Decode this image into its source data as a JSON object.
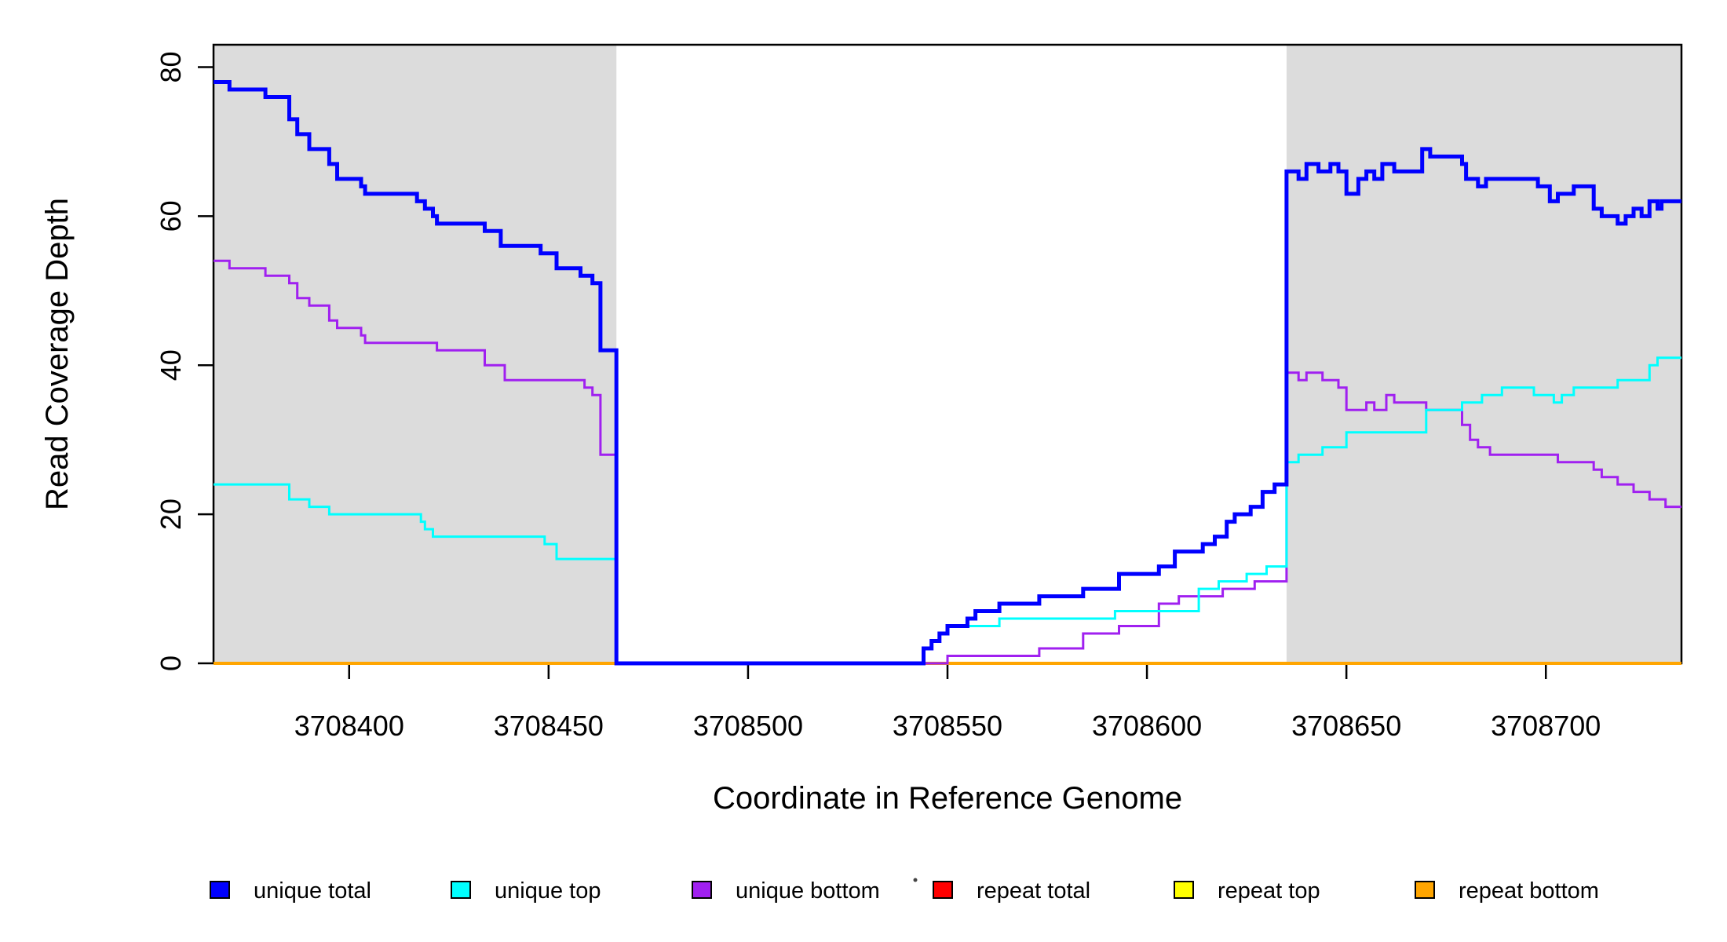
{
  "figure": {
    "background": "#FFFFFF",
    "plot_border_color": "#000000",
    "shade_color": "#DCDCDC"
  },
  "chart_data": {
    "type": "line",
    "subtype": "step-after",
    "title": "",
    "xlabel": "Coordinate in Reference Genome",
    "ylabel": "Read Coverage Depth",
    "xlim": [
      3708366,
      3708734
    ],
    "ylim": [
      0,
      83
    ],
    "x_ticks": [
      3708400,
      3708450,
      3708500,
      3708550,
      3708600,
      3708650,
      3708700
    ],
    "y_ticks": [
      0,
      20,
      40,
      60,
      80
    ],
    "grid": false,
    "legend_position": "bottom",
    "shaded_regions": [
      {
        "name": "left-gray-region",
        "x0": 3708366,
        "x1": 3708467
      },
      {
        "name": "right-gray-region",
        "x0": 3708635,
        "x1": 3708734
      }
    ],
    "series": [
      {
        "name": "repeat total",
        "color": "#FF0000",
        "line_width": 3,
        "points": [
          [
            3708366,
            0
          ],
          [
            3708734,
            0
          ]
        ]
      },
      {
        "name": "repeat top",
        "color": "#FFFF00",
        "line_width": 3,
        "points": [
          [
            3708366,
            0
          ],
          [
            3708734,
            0
          ]
        ]
      },
      {
        "name": "repeat bottom",
        "color": "#FFA500",
        "line_width": 4,
        "points": [
          [
            3708366,
            0
          ],
          [
            3708734,
            0
          ]
        ]
      },
      {
        "name": "unique bottom",
        "color": "#A020F0",
        "line_width": 3,
        "points": [
          [
            3708366,
            54
          ],
          [
            3708370,
            53
          ],
          [
            3708379,
            52
          ],
          [
            3708385,
            51
          ],
          [
            3708387,
            49
          ],
          [
            3708390,
            48
          ],
          [
            3708395,
            46
          ],
          [
            3708397,
            45
          ],
          [
            3708403,
            44
          ],
          [
            3708404,
            43
          ],
          [
            3708422,
            42
          ],
          [
            3708434,
            40
          ],
          [
            3708439,
            38
          ],
          [
            3708459,
            37
          ],
          [
            3708461,
            36
          ],
          [
            3708463,
            28
          ],
          [
            3708467,
            0
          ],
          [
            3708550,
            1
          ],
          [
            3708573,
            2
          ],
          [
            3708584,
            4
          ],
          [
            3708593,
            5
          ],
          [
            3708603,
            8
          ],
          [
            3708608,
            9
          ],
          [
            3708619,
            10
          ],
          [
            3708627,
            11
          ],
          [
            3708635,
            39
          ],
          [
            3708638,
            38
          ],
          [
            3708640,
            39
          ],
          [
            3708644,
            38
          ],
          [
            3708648,
            37
          ],
          [
            3708650,
            34
          ],
          [
            3708655,
            35
          ],
          [
            3708657,
            34
          ],
          [
            3708660,
            36
          ],
          [
            3708662,
            35
          ],
          [
            3708670,
            34
          ],
          [
            3708679,
            32
          ],
          [
            3708681,
            30
          ],
          [
            3708683,
            29
          ],
          [
            3708686,
            28
          ],
          [
            3708703,
            27
          ],
          [
            3708712,
            26
          ],
          [
            3708714,
            25
          ],
          [
            3708718,
            24
          ],
          [
            3708722,
            23
          ],
          [
            3708726,
            22
          ],
          [
            3708730,
            21
          ],
          [
            3708734,
            21
          ]
        ]
      },
      {
        "name": "unique top",
        "color": "#00FFFF",
        "line_width": 3,
        "points": [
          [
            3708366,
            24
          ],
          [
            3708385,
            22
          ],
          [
            3708390,
            21
          ],
          [
            3708395,
            20
          ],
          [
            3708418,
            19
          ],
          [
            3708419,
            18
          ],
          [
            3708421,
            17
          ],
          [
            3708449,
            16
          ],
          [
            3708452,
            14
          ],
          [
            3708467,
            0
          ],
          [
            3708544,
            2
          ],
          [
            3708546,
            3
          ],
          [
            3708548,
            4
          ],
          [
            3708550,
            5
          ],
          [
            3708563,
            6
          ],
          [
            3708592,
            7
          ],
          [
            3708613,
            10
          ],
          [
            3708618,
            11
          ],
          [
            3708625,
            12
          ],
          [
            3708630,
            13
          ],
          [
            3708635,
            27
          ],
          [
            3708638,
            28
          ],
          [
            3708644,
            29
          ],
          [
            3708650,
            31
          ],
          [
            3708670,
            34
          ],
          [
            3708679,
            35
          ],
          [
            3708684,
            36
          ],
          [
            3708689,
            37
          ],
          [
            3708697,
            36
          ],
          [
            3708702,
            35
          ],
          [
            3708704,
            36
          ],
          [
            3708707,
            37
          ],
          [
            3708718,
            38
          ],
          [
            3708726,
            40
          ],
          [
            3708728,
            41
          ],
          [
            3708734,
            41
          ]
        ]
      },
      {
        "name": "unique total",
        "color": "#0000FF",
        "line_width": 5,
        "points": [
          [
            3708366,
            78
          ],
          [
            3708370,
            77
          ],
          [
            3708379,
            76
          ],
          [
            3708385,
            73
          ],
          [
            3708387,
            71
          ],
          [
            3708390,
            69
          ],
          [
            3708395,
            67
          ],
          [
            3708397,
            65
          ],
          [
            3708403,
            64
          ],
          [
            3708404,
            63
          ],
          [
            3708417,
            62
          ],
          [
            3708419,
            61
          ],
          [
            3708421,
            60
          ],
          [
            3708422,
            59
          ],
          [
            3708434,
            58
          ],
          [
            3708438,
            56
          ],
          [
            3708448,
            55
          ],
          [
            3708452,
            53
          ],
          [
            3708458,
            52
          ],
          [
            3708461,
            51
          ],
          [
            3708463,
            42
          ],
          [
            3708467,
            0
          ],
          [
            3708544,
            2
          ],
          [
            3708546,
            3
          ],
          [
            3708548,
            4
          ],
          [
            3708550,
            5
          ],
          [
            3708555,
            6
          ],
          [
            3708557,
            7
          ],
          [
            3708563,
            8
          ],
          [
            3708573,
            9
          ],
          [
            3708584,
            10
          ],
          [
            3708593,
            12
          ],
          [
            3708603,
            13
          ],
          [
            3708607,
            15
          ],
          [
            3708614,
            16
          ],
          [
            3708617,
            17
          ],
          [
            3708620,
            19
          ],
          [
            3708622,
            20
          ],
          [
            3708626,
            21
          ],
          [
            3708629,
            23
          ],
          [
            3708632,
            24
          ],
          [
            3708635,
            66
          ],
          [
            3708638,
            65
          ],
          [
            3708640,
            67
          ],
          [
            3708643,
            66
          ],
          [
            3708646,
            67
          ],
          [
            3708648,
            66
          ],
          [
            3708650,
            63
          ],
          [
            3708653,
            65
          ],
          [
            3708655,
            66
          ],
          [
            3708657,
            65
          ],
          [
            3708659,
            67
          ],
          [
            3708662,
            66
          ],
          [
            3708669,
            69
          ],
          [
            3708671,
            68
          ],
          [
            3708679,
            67
          ],
          [
            3708680,
            65
          ],
          [
            3708683,
            64
          ],
          [
            3708685,
            65
          ],
          [
            3708698,
            64
          ],
          [
            3708701,
            62
          ],
          [
            3708703,
            63
          ],
          [
            3708707,
            64
          ],
          [
            3708712,
            61
          ],
          [
            3708714,
            60
          ],
          [
            3708718,
            59
          ],
          [
            3708720,
            60
          ],
          [
            3708722,
            61
          ],
          [
            3708724,
            60
          ],
          [
            3708726,
            62
          ],
          [
            3708728,
            61
          ],
          [
            3708729,
            62
          ],
          [
            3708734,
            62
          ]
        ]
      }
    ]
  },
  "legend": {
    "items": [
      {
        "label": "unique total",
        "color": "#0000FF"
      },
      {
        "label": "unique top",
        "color": "#00FFFF"
      },
      {
        "label": "unique bottom",
        "color": "#A020F0"
      },
      {
        "label": "repeat total",
        "color": "#FF0000"
      },
      {
        "label": "repeat top",
        "color": "#FFFF00"
      },
      {
        "label": "repeat bottom",
        "color": "#FFA500"
      }
    ],
    "stray_dot": "."
  }
}
